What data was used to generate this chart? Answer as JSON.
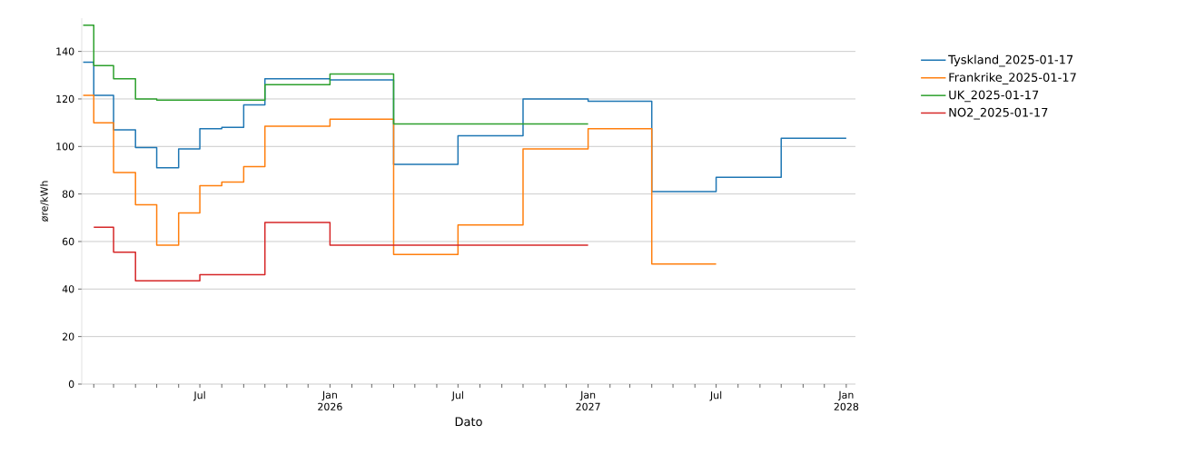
{
  "chart_data": {
    "type": "step",
    "xlabel": "Dato",
    "ylabel": "øre/kWh",
    "xlim": [
      "2025-01-15",
      "2028-01-14"
    ],
    "ylim": [
      0,
      154
    ],
    "yticks": [
      0,
      20,
      40,
      60,
      80,
      100,
      120,
      140
    ],
    "xticks": [
      {
        "value": "2025-02",
        "label": null
      },
      {
        "value": "2025-03",
        "label": null
      },
      {
        "value": "2025-04",
        "label": null
      },
      {
        "value": "2025-05",
        "label": null
      },
      {
        "value": "2025-06",
        "label": null
      },
      {
        "value": "2025-07",
        "label": "Jul"
      },
      {
        "value": "2025-08",
        "label": null
      },
      {
        "value": "2025-09",
        "label": null
      },
      {
        "value": "2025-10",
        "label": null
      },
      {
        "value": "2025-11",
        "label": null
      },
      {
        "value": "2025-12",
        "label": null
      },
      {
        "value": "2026-01",
        "label": "Jan 2026"
      },
      {
        "value": "2026-02",
        "label": null
      },
      {
        "value": "2026-03",
        "label": null
      },
      {
        "value": "2026-04",
        "label": null
      },
      {
        "value": "2026-05",
        "label": null
      },
      {
        "value": "2026-06",
        "label": null
      },
      {
        "value": "2026-07",
        "label": "Jul"
      },
      {
        "value": "2026-08",
        "label": null
      },
      {
        "value": "2026-09",
        "label": null
      },
      {
        "value": "2026-10",
        "label": null
      },
      {
        "value": "2026-11",
        "label": null
      },
      {
        "value": "2026-12",
        "label": null
      },
      {
        "value": "2027-01",
        "label": "Jan 2027"
      },
      {
        "value": "2027-02",
        "label": null
      },
      {
        "value": "2027-03",
        "label": null
      },
      {
        "value": "2027-04",
        "label": null
      },
      {
        "value": "2027-05",
        "label": null
      },
      {
        "value": "2027-06",
        "label": null
      },
      {
        "value": "2027-07",
        "label": "Jul"
      },
      {
        "value": "2027-08",
        "label": null
      },
      {
        "value": "2027-09",
        "label": null
      },
      {
        "value": "2027-10",
        "label": null
      },
      {
        "value": "2027-11",
        "label": null
      },
      {
        "value": "2027-12",
        "label": null
      },
      {
        "value": "2028-01",
        "label": "Jan 2028"
      }
    ],
    "grid": "y",
    "legend": "top right",
    "series": [
      {
        "name": "Tyskland_2025-01-17",
        "color": "#1f77b4",
        "x": [
          "2025-01-17",
          "2025-02",
          "2025-03",
          "2025-04",
          "2025-05",
          "2025-06",
          "2025-07",
          "2025-08",
          "2025-09",
          "2025-10",
          "2026-01",
          "2026-04",
          "2026-07",
          "2026-10",
          "2027-01",
          "2027-04",
          "2027-07",
          "2027-10",
          "2028-01"
        ],
        "values": [
          135.5,
          121.5,
          107,
          99.5,
          91,
          99,
          107.5,
          108,
          117.5,
          128.5,
          128,
          92.5,
          104.5,
          120,
          119,
          81,
          87,
          103.5,
          103.5
        ]
      },
      {
        "name": "Frankrike_2025-01-17",
        "color": "#ff7f0e",
        "x": [
          "2025-01-17",
          "2025-02",
          "2025-03",
          "2025-04",
          "2025-05",
          "2025-06",
          "2025-07",
          "2025-08",
          "2025-09",
          "2025-10",
          "2026-01",
          "2026-04",
          "2026-07",
          "2026-10",
          "2027-01",
          "2027-04",
          "2027-07"
        ],
        "values": [
          121.5,
          110,
          89,
          75.5,
          58.5,
          72,
          83.5,
          85,
          91.5,
          108.5,
          111.5,
          54.5,
          67,
          99,
          107.5,
          50.5,
          50.5
        ]
      },
      {
        "name": "UK_2025-01-17",
        "color": "#2ca02c",
        "x": [
          "2025-01-17",
          "2025-02",
          "2025-03",
          "2025-04",
          "2025-05",
          "2025-10",
          "2026-01",
          "2026-04",
          "2027-01"
        ],
        "values": [
          151,
          134,
          128.5,
          120,
          119.5,
          126,
          130.5,
          109.5,
          109.5
        ]
      },
      {
        "name": "NO2_2025-01-17",
        "color": "#d62728",
        "x": [
          "2025-02",
          "2025-03",
          "2025-04",
          "2025-07",
          "2025-10",
          "2026-01",
          "2027-01"
        ],
        "values": [
          66,
          55.5,
          43.5,
          46,
          68,
          58.5,
          58.5
        ]
      }
    ]
  }
}
